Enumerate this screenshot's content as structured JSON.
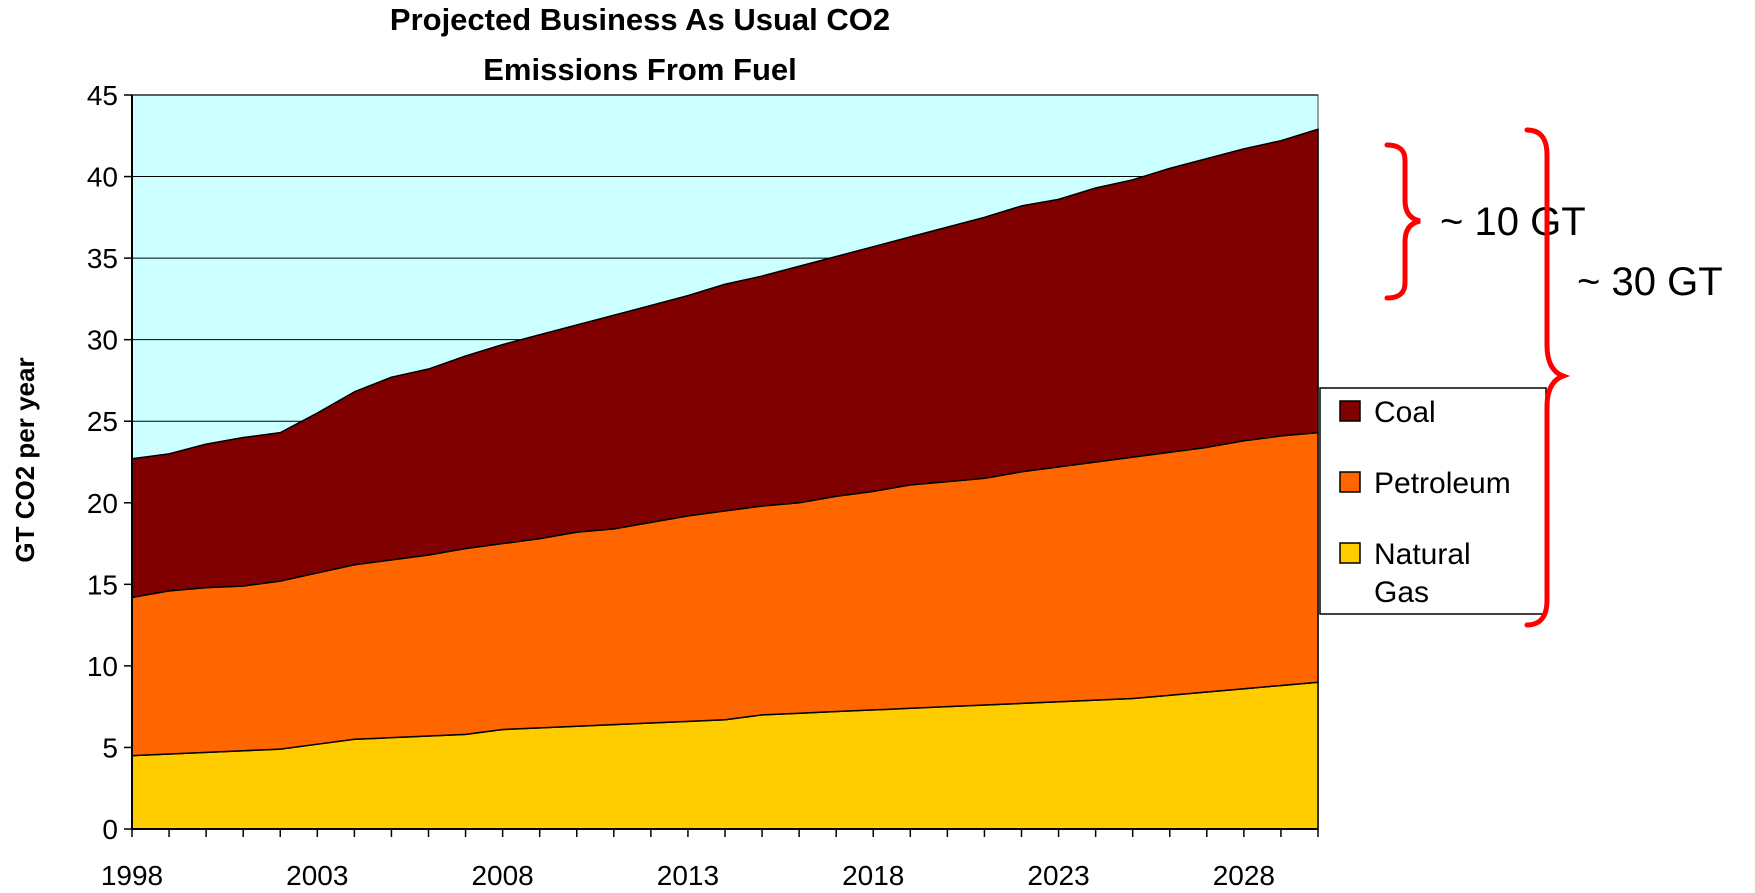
{
  "chart_data": {
    "type": "area",
    "stacked": true,
    "title": "Projected Business As Usual CO2 Emissions From Fuel",
    "title_lines": [
      "Projected Business As Usual CO2",
      "Emissions From Fuel"
    ],
    "ylabel": "GT CO2 per year",
    "xlabel": "",
    "ylim": [
      0,
      45
    ],
    "yticks": [
      "0",
      "5",
      "10",
      "15",
      "20",
      "25",
      "30",
      "35",
      "40",
      "45"
    ],
    "xlim": [
      1998,
      2030
    ],
    "xticks": [
      "1998",
      "2003",
      "2008",
      "2013",
      "2018",
      "2023",
      "2028"
    ],
    "grid": "horizontal",
    "background_color": "#ccffff",
    "legend_position": "right",
    "x": [
      1998,
      1999,
      2000,
      2001,
      2002,
      2003,
      2004,
      2005,
      2006,
      2007,
      2008,
      2009,
      2010,
      2011,
      2012,
      2013,
      2014,
      2015,
      2016,
      2017,
      2018,
      2019,
      2020,
      2021,
      2022,
      2023,
      2024,
      2025,
      2026,
      2027,
      2028,
      2029,
      2030
    ],
    "series": [
      {
        "name": "Natural Gas",
        "color": "#ffcc00",
        "legend_lines": [
          "Natural",
          "Gas"
        ],
        "values": [
          4.5,
          4.6,
          4.7,
          4.8,
          4.9,
          5.2,
          5.5,
          5.6,
          5.7,
          5.8,
          6.1,
          6.2,
          6.3,
          6.4,
          6.5,
          6.6,
          6.7,
          7.0,
          7.1,
          7.2,
          7.3,
          7.4,
          7.5,
          7.6,
          7.7,
          7.8,
          7.9,
          8.0,
          8.2,
          8.4,
          8.6,
          8.8,
          9.0
        ]
      },
      {
        "name": "Petroleum",
        "color": "#ff6600",
        "legend_lines": [
          "Petroleum"
        ],
        "values": [
          9.7,
          10.0,
          10.1,
          10.1,
          10.3,
          10.5,
          10.7,
          10.9,
          11.1,
          11.4,
          11.4,
          11.6,
          11.9,
          12.0,
          12.3,
          12.6,
          12.8,
          12.8,
          12.9,
          13.2,
          13.4,
          13.7,
          13.8,
          13.9,
          14.2,
          14.4,
          14.6,
          14.8,
          14.9,
          15.0,
          15.2,
          15.3,
          15.3
        ]
      },
      {
        "name": "Coal",
        "color": "#800000",
        "legend_lines": [
          "Coal"
        ],
        "values": [
          8.5,
          8.4,
          8.8,
          9.1,
          9.1,
          9.8,
          10.6,
          11.2,
          11.4,
          11.8,
          12.2,
          12.5,
          12.7,
          13.1,
          13.3,
          13.5,
          13.9,
          14.1,
          14.5,
          14.7,
          15.0,
          15.2,
          15.6,
          16.0,
          16.3,
          16.4,
          16.8,
          17.0,
          17.4,
          17.7,
          17.9,
          18.1,
          18.6
        ]
      }
    ],
    "annotations": [
      {
        "text": "~ 10 GT",
        "brace_span": "Coal"
      },
      {
        "text": "~ 30 GT",
        "brace_span": "total"
      }
    ],
    "annotation_color": "#ff0000"
  }
}
